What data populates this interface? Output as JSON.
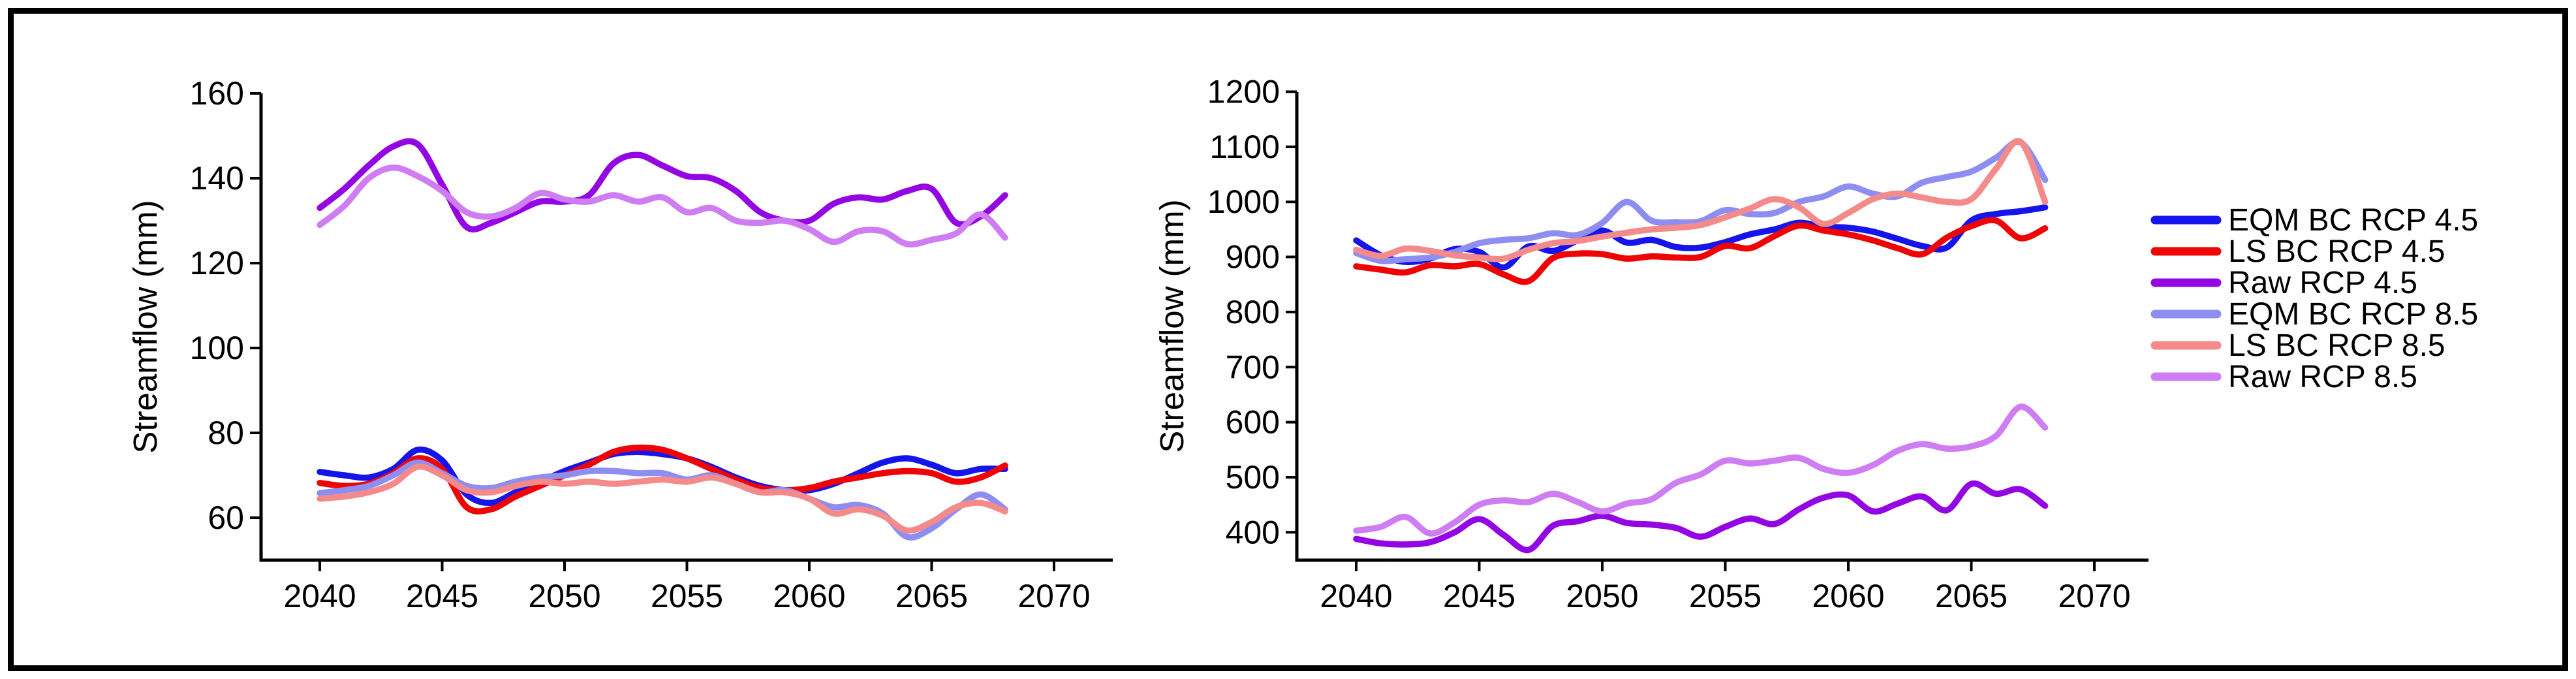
{
  "figure": {
    "background": "#ffffff",
    "border_color": "#000000"
  },
  "legend": {
    "position": "right",
    "items": [
      {
        "label": "EQM BC RCP 4.5",
        "color": "#1515eb"
      },
      {
        "label": "LS BC RCP 4.5",
        "color": "#ee0404"
      },
      {
        "label": "Raw RCP 4.5",
        "color": "#9405e3"
      },
      {
        "label": "EQM BC RCP 8.5",
        "color": "#8e8ef2"
      },
      {
        "label": "LS BC RCP 8.5",
        "color": "#f58a8a"
      },
      {
        "label": "Raw RCP 8.5",
        "color": "#cf7df2"
      }
    ]
  },
  "chart_data": [
    {
      "type": "line",
      "title": "",
      "xlabel": "",
      "ylabel": "Streamflow (mm)",
      "grid": false,
      "legend_position": "none",
      "x": [
        2040,
        2041,
        2042,
        2043,
        2044,
        2045,
        2046,
        2047,
        2048,
        2049,
        2050,
        2051,
        2052,
        2053,
        2054,
        2055,
        2056,
        2057,
        2058,
        2059,
        2060,
        2061,
        2062,
        2063,
        2064,
        2065,
        2066,
        2067,
        2068
      ],
      "xticks": [
        2040,
        2045,
        2050,
        2055,
        2060,
        2065,
        2070
      ],
      "yticks": [
        60,
        80,
        100,
        120,
        140,
        160
      ],
      "ylim": [
        50,
        160
      ],
      "xlim": [
        2037.6,
        2072.4
      ],
      "series": [
        {
          "name": "EQM BC RCP 4.5",
          "color": "#1515eb",
          "values": [
            70.8,
            70,
            69.5,
            71.5,
            76,
            73.5,
            65.5,
            63.5,
            66,
            68.5,
            71,
            73,
            75,
            75.5,
            75,
            74,
            72,
            69.5,
            67.5,
            66.5,
            66.5,
            68,
            70.5,
            73,
            74,
            72.5,
            70.5,
            71.5,
            71.5
          ]
        },
        {
          "name": "LS BC RCP 4.5",
          "color": "#ee0404",
          "values": [
            68.2,
            67.5,
            68,
            70.5,
            74,
            71.5,
            62.5,
            62,
            65,
            67.5,
            70,
            72.5,
            75.5,
            76.5,
            76,
            74,
            71.5,
            69,
            67,
            66.5,
            67,
            68.5,
            69.5,
            70.5,
            71,
            70.5,
            68.5,
            69.5,
            72.3
          ]
        },
        {
          "name": "Raw RCP 4.5",
          "color": "#9405e3",
          "values": [
            133,
            137.5,
            143,
            147.5,
            148,
            138.5,
            128.5,
            129.5,
            132,
            134.5,
            134.5,
            136,
            143.5,
            145.5,
            143,
            140.5,
            140,
            137,
            132,
            130,
            130,
            134,
            135.5,
            135,
            137,
            137.5,
            129.5,
            131,
            136
          ]
        },
        {
          "name": "EQM BC RCP 8.5",
          "color": "#8e8ef2",
          "values": [
            65.8,
            66.5,
            67.5,
            70,
            73,
            70.5,
            67.5,
            67,
            68.5,
            69.5,
            70,
            71,
            71,
            70.5,
            70.5,
            69,
            70,
            68,
            66,
            66.5,
            64.5,
            62.5,
            63,
            61,
            55.5,
            57.5,
            62,
            65.5,
            62
          ]
        },
        {
          "name": "LS BC RCP 8.5",
          "color": "#f58a8a",
          "values": [
            64.5,
            65,
            66,
            68,
            72,
            70,
            66.5,
            66,
            67.5,
            68.5,
            68,
            68.5,
            68,
            68.5,
            69,
            68.5,
            69.5,
            68,
            66,
            66,
            64.5,
            61,
            62,
            60.5,
            57,
            59,
            62.5,
            63.5,
            61.5
          ]
        },
        {
          "name": "Raw RCP 8.5",
          "color": "#cf7df2",
          "values": [
            129,
            133.5,
            140,
            142.5,
            140.5,
            137,
            132,
            131,
            133,
            136.5,
            135,
            134.5,
            136,
            134.5,
            135.5,
            132,
            133,
            130,
            129.5,
            130,
            128,
            125,
            127.5,
            127.5,
            124.5,
            125.5,
            127,
            131.5,
            126
          ]
        }
      ]
    },
    {
      "type": "line",
      "title": "",
      "xlabel": "",
      "ylabel": "Streamflow (mm)",
      "grid": false,
      "legend_position": "right",
      "x": [
        2040,
        2041,
        2042,
        2043,
        2044,
        2045,
        2046,
        2047,
        2048,
        2049,
        2050,
        2051,
        2052,
        2053,
        2054,
        2055,
        2056,
        2057,
        2058,
        2059,
        2060,
        2061,
        2062,
        2063,
        2064,
        2065,
        2066,
        2067,
        2068
      ],
      "xticks": [
        2040,
        2045,
        2050,
        2055,
        2060,
        2065,
        2070
      ],
      "yticks": [
        400,
        500,
        600,
        700,
        800,
        900,
        1000,
        1100,
        1200
      ],
      "ylim": [
        350,
        1200
      ],
      "xlim": [
        2037.6,
        2072.2
      ],
      "series": [
        {
          "name": "EQM BC RCP 4.5",
          "color": "#1515eb",
          "values": [
            930,
            903,
            891,
            897,
            914,
            909,
            881,
            919,
            911,
            930,
            948,
            926,
            931,
            918,
            917,
            927,
            941,
            950,
            962,
            955,
            953,
            946,
            933,
            920,
            917,
            966,
            978,
            983,
            990
          ]
        },
        {
          "name": "LS BC RCP 4.5",
          "color": "#ee0404",
          "values": [
            883,
            877,
            872,
            885,
            883,
            887,
            868,
            856,
            898,
            906,
            905,
            897,
            901,
            899,
            900,
            920,
            916,
            938,
            957,
            948,
            941,
            930,
            916,
            905,
            935,
            956,
            966,
            934,
            952
          ]
        },
        {
          "name": "Raw RCP 4.5",
          "color": "#9405e3",
          "values": [
            388,
            380,
            378,
            382,
            400,
            424,
            395,
            368,
            412,
            420,
            430,
            417,
            414,
            408,
            392,
            410,
            425,
            415,
            442,
            463,
            467,
            438,
            452,
            465,
            440,
            488,
            470,
            478,
            448
          ]
        },
        {
          "name": "EQM BC RCP 8.5",
          "color": "#8e8ef2",
          "values": [
            907,
            893,
            896,
            899,
            909,
            925,
            931,
            934,
            943,
            940,
            962,
            1000,
            966,
            963,
            965,
            985,
            978,
            980,
            1000,
            1010,
            1028,
            1015,
            1010,
            1035,
            1045,
            1055,
            1080,
            1108,
            1040
          ]
        },
        {
          "name": "LS BC RCP 8.5",
          "color": "#f58a8a",
          "values": [
            913,
            902,
            915,
            911,
            903,
            899,
            897,
            913,
            925,
            929,
            937,
            944,
            950,
            953,
            958,
            972,
            988,
            1005,
            990,
            960,
            980,
            1005,
            1015,
            1008,
            1000,
            1005,
            1060,
            1109,
            1000
          ]
        },
        {
          "name": "Raw RCP 8.5",
          "color": "#cf7df2",
          "values": [
            403,
            410,
            428,
            398,
            418,
            450,
            458,
            455,
            470,
            455,
            438,
            452,
            460,
            490,
            505,
            530,
            525,
            530,
            535,
            515,
            508,
            522,
            548,
            560,
            552,
            556,
            575,
            628,
            590
          ]
        }
      ]
    }
  ]
}
